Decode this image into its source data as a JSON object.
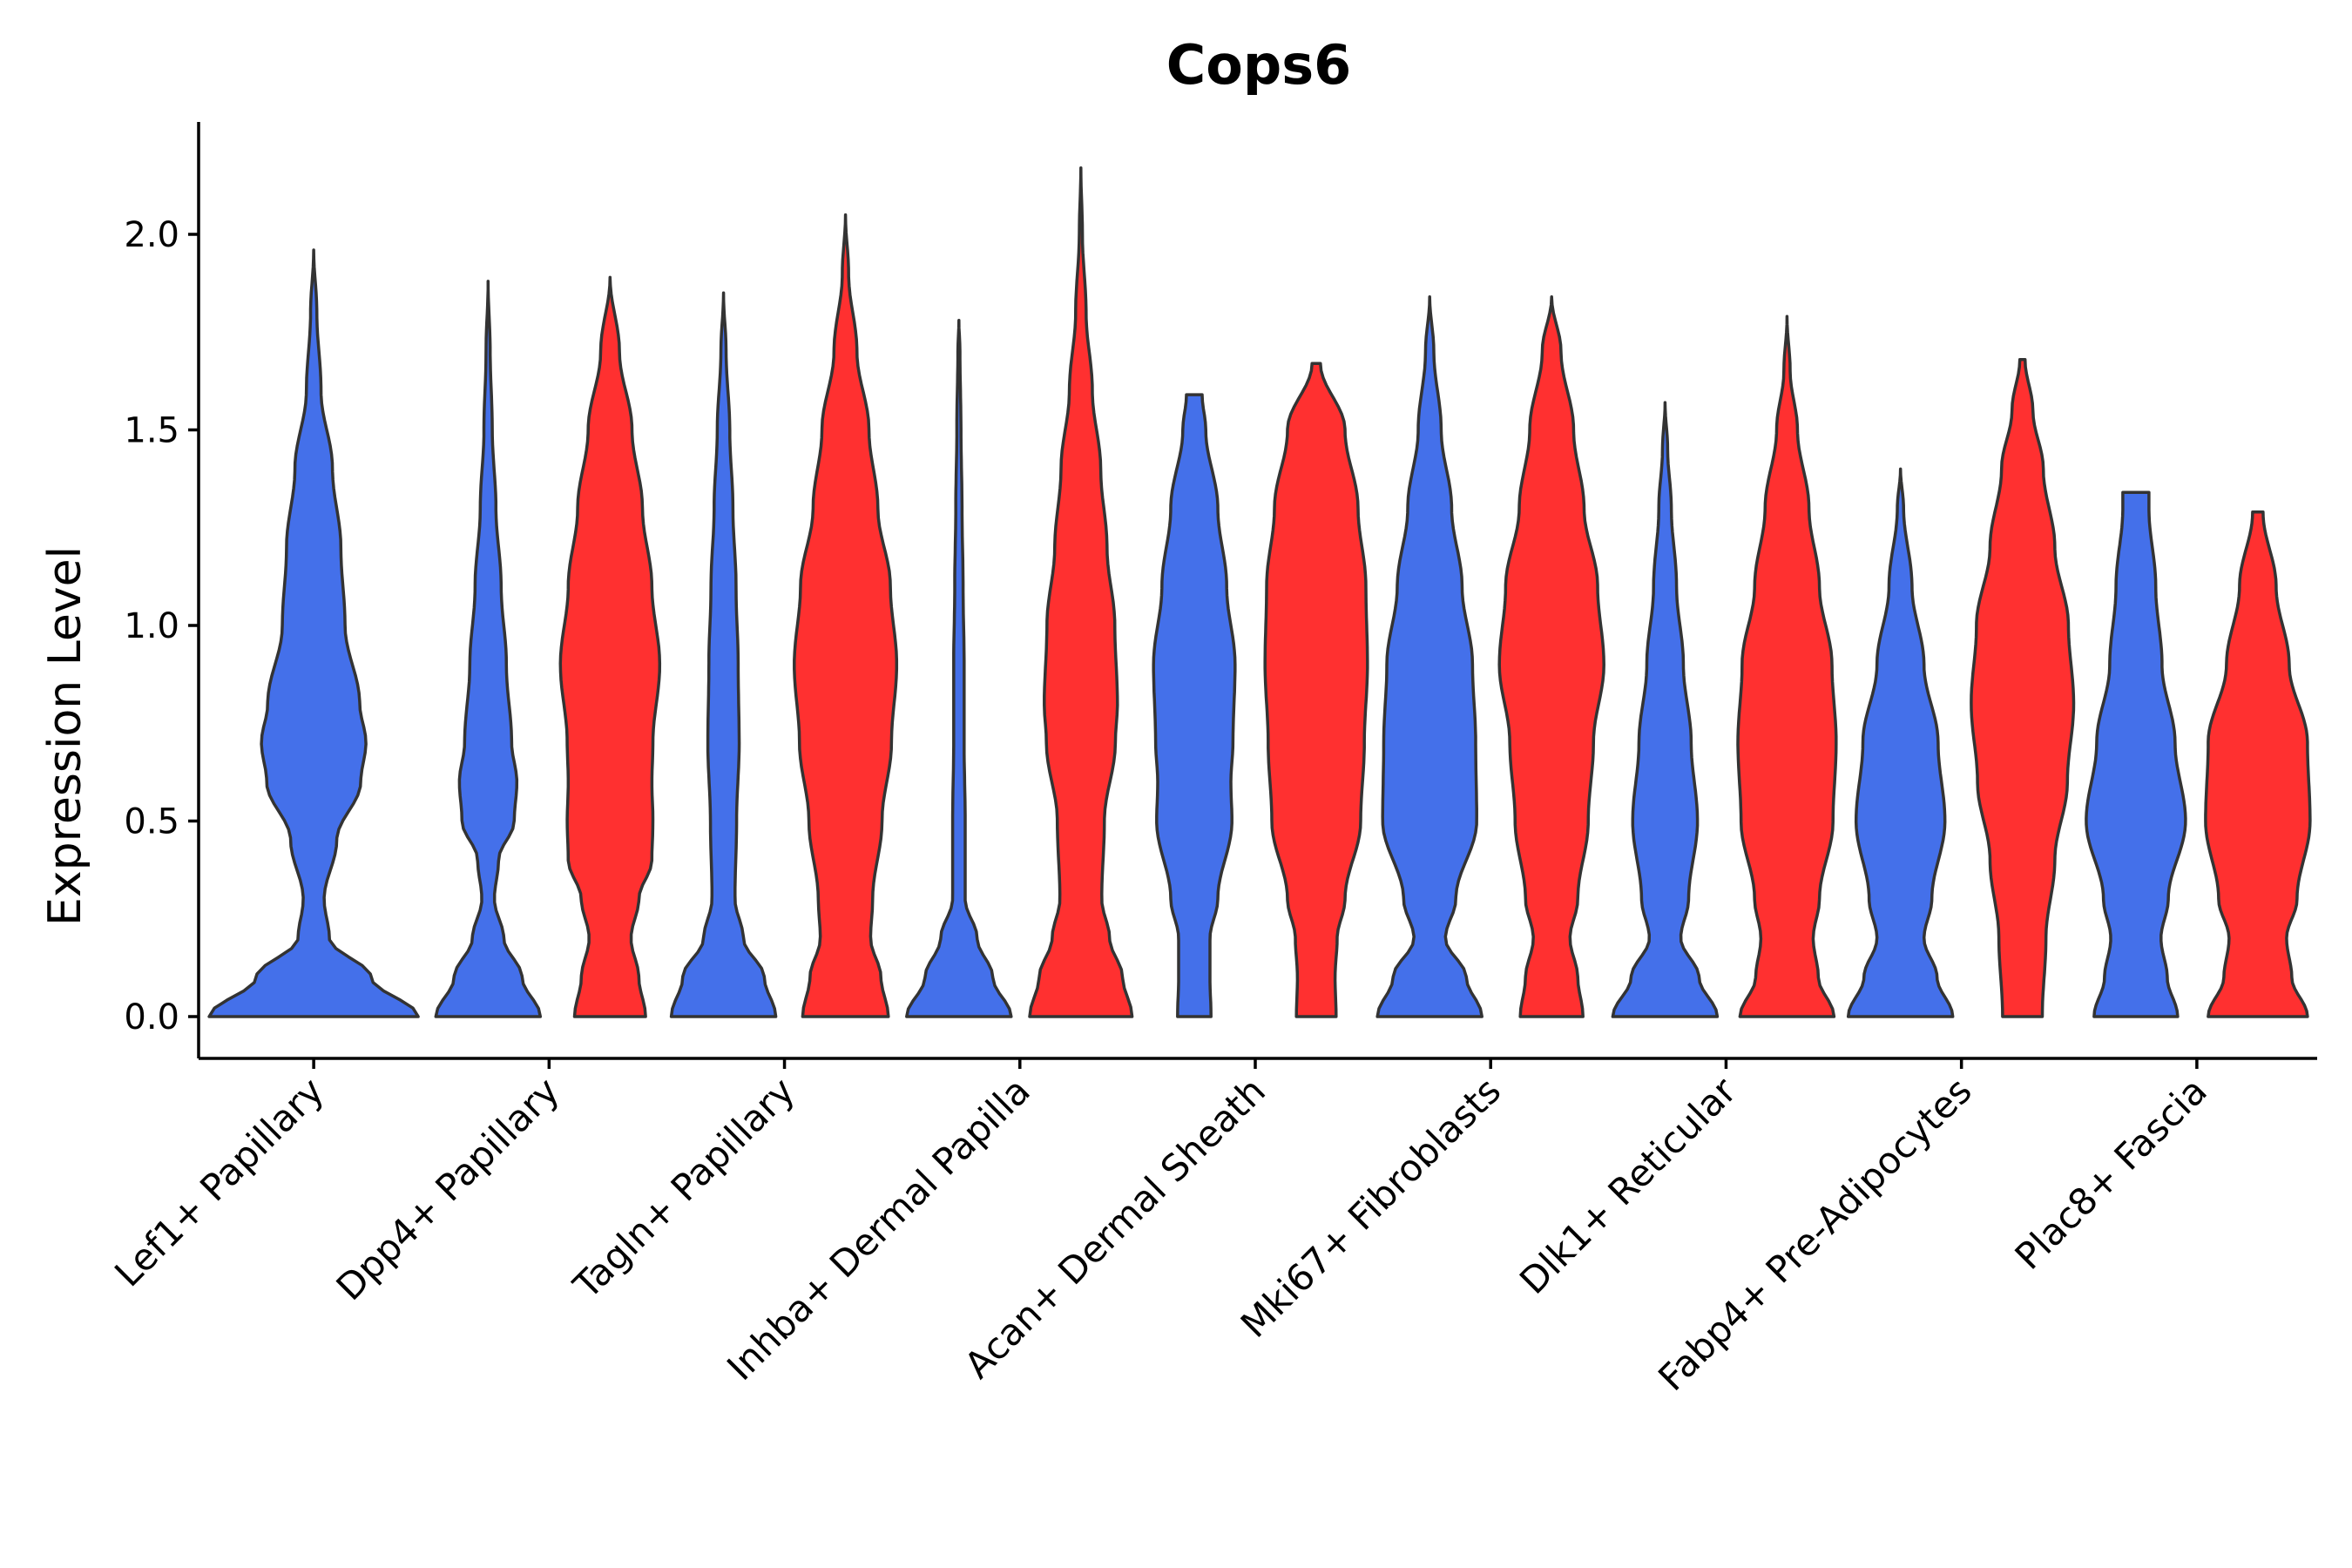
{
  "chart_data": {
    "type": "violin",
    "title": "Cops6",
    "xlabel": "",
    "ylabel": "Expression Level",
    "ylim": [
      -0.11,
      2.28
    ],
    "yticks": [
      0.0,
      0.5,
      1.0,
      1.5,
      2.0
    ],
    "ytick_labels": [
      "0.0",
      "0.5",
      "1.0",
      "1.5",
      "2.0"
    ],
    "legend": "none",
    "series_colors": {
      "blue": "#4470EA",
      "red": "#FF3030"
    },
    "categories": [
      "Lef1+ Papillary",
      "Dpp4+ Papillary",
      "Tagln+ Papillary",
      "Inhba+ Dermal Papilla",
      "Acan+ Dermal Sheath",
      "Mki67+ Fibroblasts",
      "Dlk1+ Reticular",
      "Fabp4+ Pre-Adipocytes",
      "Plac8+ Fascia"
    ],
    "violins": [
      {
        "category": "Lef1+ Papillary",
        "group": "blue",
        "max": 1.96,
        "density": [
          [
            0,
            1.0
          ],
          [
            0.1,
            0.55
          ],
          [
            0.2,
            0.15
          ],
          [
            0.3,
            0.1
          ],
          [
            0.45,
            0.22
          ],
          [
            0.6,
            0.45
          ],
          [
            0.7,
            0.5
          ],
          [
            0.8,
            0.44
          ],
          [
            1.0,
            0.3
          ],
          [
            1.2,
            0.26
          ],
          [
            1.4,
            0.18
          ],
          [
            1.6,
            0.07
          ],
          [
            1.8,
            0.03
          ],
          [
            1.96,
            0.0
          ]
        ]
      },
      {
        "category": "Dpp4+ Papillary",
        "group": "blue",
        "max": 1.88,
        "density": [
          [
            0,
            1.0
          ],
          [
            0.1,
            0.65
          ],
          [
            0.2,
            0.3
          ],
          [
            0.3,
            0.12
          ],
          [
            0.4,
            0.2
          ],
          [
            0.5,
            0.5
          ],
          [
            0.6,
            0.55
          ],
          [
            0.7,
            0.45
          ],
          [
            0.9,
            0.35
          ],
          [
            1.1,
            0.25
          ],
          [
            1.3,
            0.15
          ],
          [
            1.5,
            0.08
          ],
          [
            1.7,
            0.04
          ],
          [
            1.88,
            0.0
          ]
        ]
      },
      {
        "category": "Dpp4+ Papillary",
        "group": "red",
        "max": 1.89,
        "density": [
          [
            0,
            0.68
          ],
          [
            0.1,
            0.55
          ],
          [
            0.2,
            0.4
          ],
          [
            0.3,
            0.55
          ],
          [
            0.4,
            0.8
          ],
          [
            0.5,
            0.82
          ],
          [
            0.6,
            0.8
          ],
          [
            0.7,
            0.82
          ],
          [
            0.9,
            0.95
          ],
          [
            1.1,
            0.8
          ],
          [
            1.3,
            0.62
          ],
          [
            1.5,
            0.42
          ],
          [
            1.7,
            0.18
          ],
          [
            1.89,
            0.0
          ]
        ]
      },
      {
        "category": "Tagln+ Papillary",
        "group": "blue",
        "max": 1.85,
        "density": [
          [
            0,
            1.0
          ],
          [
            0.1,
            0.78
          ],
          [
            0.2,
            0.38
          ],
          [
            0.3,
            0.22
          ],
          [
            0.5,
            0.25
          ],
          [
            0.7,
            0.3
          ],
          [
            0.9,
            0.28
          ],
          [
            1.1,
            0.24
          ],
          [
            1.3,
            0.18
          ],
          [
            1.5,
            0.12
          ],
          [
            1.7,
            0.05
          ],
          [
            1.85,
            0.0
          ]
        ]
      },
      {
        "category": "Tagln+ Papillary",
        "group": "red",
        "max": 2.05,
        "density": [
          [
            0,
            0.82
          ],
          [
            0.1,
            0.68
          ],
          [
            0.2,
            0.48
          ],
          [
            0.3,
            0.52
          ],
          [
            0.5,
            0.7
          ],
          [
            0.7,
            0.88
          ],
          [
            0.9,
            0.98
          ],
          [
            1.1,
            0.86
          ],
          [
            1.3,
            0.62
          ],
          [
            1.5,
            0.45
          ],
          [
            1.7,
            0.22
          ],
          [
            1.9,
            0.06
          ],
          [
            2.05,
            0.0
          ]
        ]
      },
      {
        "category": "Inhba+ Dermal Papilla",
        "group": "blue",
        "max": 1.78,
        "density": [
          [
            0,
            1.0
          ],
          [
            0.1,
            0.65
          ],
          [
            0.2,
            0.35
          ],
          [
            0.3,
            0.12
          ],
          [
            0.5,
            0.12
          ],
          [
            0.7,
            0.1
          ],
          [
            0.9,
            0.1
          ],
          [
            1.1,
            0.08
          ],
          [
            1.3,
            0.06
          ],
          [
            1.5,
            0.04
          ],
          [
            1.7,
            0.02
          ],
          [
            1.78,
            0.0
          ]
        ]
      },
      {
        "category": "Inhba+ Dermal Papilla",
        "group": "red",
        "max": 2.17,
        "density": [
          [
            0,
            0.98
          ],
          [
            0.1,
            0.8
          ],
          [
            0.2,
            0.55
          ],
          [
            0.3,
            0.4
          ],
          [
            0.5,
            0.45
          ],
          [
            0.7,
            0.66
          ],
          [
            0.8,
            0.7
          ],
          [
            1.0,
            0.65
          ],
          [
            1.2,
            0.5
          ],
          [
            1.4,
            0.38
          ],
          [
            1.6,
            0.22
          ],
          [
            1.8,
            0.1
          ],
          [
            2.0,
            0.03
          ],
          [
            2.17,
            0.0
          ]
        ]
      },
      {
        "category": "Acan+ Dermal Sheath",
        "group": "blue",
        "max": 1.59,
        "density": [
          [
            0,
            0.32
          ],
          [
            0.1,
            0.3
          ],
          [
            0.2,
            0.3
          ],
          [
            0.3,
            0.45
          ],
          [
            0.5,
            0.72
          ],
          [
            0.6,
            0.7
          ],
          [
            0.7,
            0.74
          ],
          [
            0.9,
            0.78
          ],
          [
            1.1,
            0.62
          ],
          [
            1.3,
            0.45
          ],
          [
            1.5,
            0.22
          ],
          [
            1.59,
            0.15
          ]
        ]
      },
      {
        "category": "Acan+ Dermal Sheath",
        "group": "red",
        "max": 1.67,
        "density": [
          [
            0,
            0.38
          ],
          [
            0.1,
            0.36
          ],
          [
            0.2,
            0.4
          ],
          [
            0.3,
            0.55
          ],
          [
            0.5,
            0.85
          ],
          [
            0.7,
            0.92
          ],
          [
            0.9,
            0.98
          ],
          [
            1.1,
            0.95
          ],
          [
            1.3,
            0.8
          ],
          [
            1.5,
            0.55
          ],
          [
            1.67,
            0.08
          ]
        ]
      },
      {
        "category": "Mki67+ Fibroblasts",
        "group": "blue",
        "max": 1.84,
        "density": [
          [
            0,
            1.0
          ],
          [
            0.1,
            0.7
          ],
          [
            0.2,
            0.3
          ],
          [
            0.3,
            0.5
          ],
          [
            0.5,
            0.9
          ],
          [
            0.7,
            0.88
          ],
          [
            0.9,
            0.82
          ],
          [
            1.1,
            0.62
          ],
          [
            1.3,
            0.42
          ],
          [
            1.5,
            0.22
          ],
          [
            1.7,
            0.08
          ],
          [
            1.84,
            0.0
          ]
        ]
      },
      {
        "category": "Mki67+ Fibroblasts",
        "group": "red",
        "max": 1.84,
        "density": [
          [
            0,
            0.6
          ],
          [
            0.1,
            0.5
          ],
          [
            0.2,
            0.35
          ],
          [
            0.3,
            0.5
          ],
          [
            0.5,
            0.7
          ],
          [
            0.7,
            0.8
          ],
          [
            0.9,
            1.0
          ],
          [
            1.1,
            0.88
          ],
          [
            1.3,
            0.62
          ],
          [
            1.5,
            0.42
          ],
          [
            1.7,
            0.18
          ],
          [
            1.84,
            0.0
          ]
        ]
      },
      {
        "category": "Dlk1+ Reticular",
        "group": "blue",
        "max": 1.57,
        "density": [
          [
            0,
            1.0
          ],
          [
            0.1,
            0.65
          ],
          [
            0.2,
            0.3
          ],
          [
            0.3,
            0.45
          ],
          [
            0.5,
            0.62
          ],
          [
            0.7,
            0.5
          ],
          [
            0.9,
            0.35
          ],
          [
            1.1,
            0.22
          ],
          [
            1.3,
            0.12
          ],
          [
            1.45,
            0.05
          ],
          [
            1.57,
            0.0
          ]
        ]
      },
      {
        "category": "Dlk1+ Reticular",
        "group": "red",
        "max": 1.79,
        "density": [
          [
            0,
            0.9
          ],
          [
            0.1,
            0.6
          ],
          [
            0.2,
            0.5
          ],
          [
            0.3,
            0.62
          ],
          [
            0.5,
            0.88
          ],
          [
            0.7,
            0.94
          ],
          [
            0.9,
            0.86
          ],
          [
            1.1,
            0.62
          ],
          [
            1.3,
            0.42
          ],
          [
            1.5,
            0.2
          ],
          [
            1.65,
            0.06
          ],
          [
            1.79,
            0.0
          ]
        ]
      },
      {
        "category": "Fabp4+ Pre-Adipocytes",
        "group": "blue",
        "max": 1.4,
        "density": [
          [
            0,
            1.0
          ],
          [
            0.1,
            0.7
          ],
          [
            0.2,
            0.45
          ],
          [
            0.3,
            0.6
          ],
          [
            0.5,
            0.85
          ],
          [
            0.7,
            0.72
          ],
          [
            0.9,
            0.45
          ],
          [
            1.1,
            0.22
          ],
          [
            1.3,
            0.06
          ],
          [
            1.4,
            0.0
          ]
        ]
      },
      {
        "category": "Fabp4+ Pre-Adipocytes",
        "group": "red",
        "max": 1.68,
        "density": [
          [
            0,
            0.38
          ],
          [
            0.2,
            0.45
          ],
          [
            0.4,
            0.62
          ],
          [
            0.6,
            0.86
          ],
          [
            0.8,
            0.98
          ],
          [
            1.0,
            0.88
          ],
          [
            1.2,
            0.62
          ],
          [
            1.4,
            0.4
          ],
          [
            1.55,
            0.2
          ],
          [
            1.68,
            0.05
          ]
        ]
      },
      {
        "category": "Plac8+ Fascia",
        "group": "blue",
        "max": 1.34,
        "density": [
          [
            0,
            0.8
          ],
          [
            0.1,
            0.6
          ],
          [
            0.2,
            0.48
          ],
          [
            0.3,
            0.62
          ],
          [
            0.5,
            0.95
          ],
          [
            0.7,
            0.75
          ],
          [
            0.9,
            0.5
          ],
          [
            1.1,
            0.38
          ],
          [
            1.3,
            0.25
          ],
          [
            1.34,
            0.25
          ]
        ]
      },
      {
        "category": "Plac8+ Fascia",
        "group": "red",
        "max": 1.29,
        "density": [
          [
            0,
            0.95
          ],
          [
            0.1,
            0.65
          ],
          [
            0.2,
            0.55
          ],
          [
            0.3,
            0.75
          ],
          [
            0.5,
            1.0
          ],
          [
            0.7,
            0.95
          ],
          [
            0.9,
            0.6
          ],
          [
            1.1,
            0.35
          ],
          [
            1.29,
            0.1
          ]
        ]
      }
    ]
  }
}
